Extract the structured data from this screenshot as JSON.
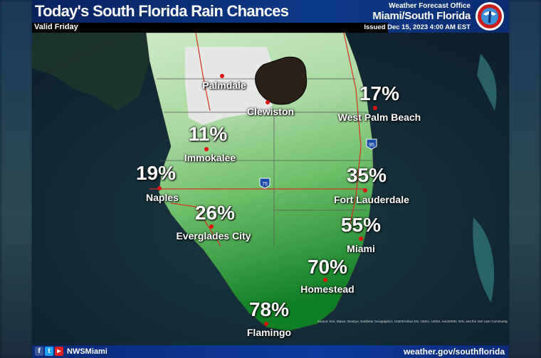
{
  "header": {
    "title": "Today's South Florida Rain Chances",
    "valid": "Valid Friday",
    "office_label": "Weather Forecast Office",
    "office": "Miami/South Florida",
    "issued": "Issued Dec 15, 2023 4:00 AM EST",
    "logo_text": "NATIONAL WEATHER SERVICE"
  },
  "map": {
    "locations": [
      {
        "name": "Palmdale",
        "chance": null
      },
      {
        "name": "Clewiston",
        "chance": null
      },
      {
        "name": "West Palm Beach",
        "chance": "17%"
      },
      {
        "name": "Immokalee",
        "chance": "11%"
      },
      {
        "name": "Naples",
        "chance": "19%"
      },
      {
        "name": "Fort Lauderdale",
        "chance": "35%"
      },
      {
        "name": "Everglades City",
        "chance": "26%"
      },
      {
        "name": "Miami",
        "chance": "55%"
      },
      {
        "name": "Homestead",
        "chance": "70%"
      },
      {
        "name": "Flamingo",
        "chance": "78%"
      }
    ],
    "shields": [
      "75",
      "95"
    ],
    "source": "Source: Esri, Maxar, GeoEye, Earthstar Geographics, CNES/Airbus DS, USDA, USGS, AeroGRID, IGN, and the GIS User Community",
    "colors": {
      "low": "#e6e6e6",
      "light_green": "#b8e0b0",
      "mid_green": "#6fbf6a",
      "dark_green": "#1f8f2f",
      "lake": "#2a2018",
      "city_dot": "#e01010",
      "highway": "#d83020"
    }
  },
  "footer": {
    "social_icons": [
      "facebook-icon",
      "twitter-icon",
      "youtube-icon"
    ],
    "handle": "NWSMiami",
    "website": "weather.gov/southflorida"
  }
}
